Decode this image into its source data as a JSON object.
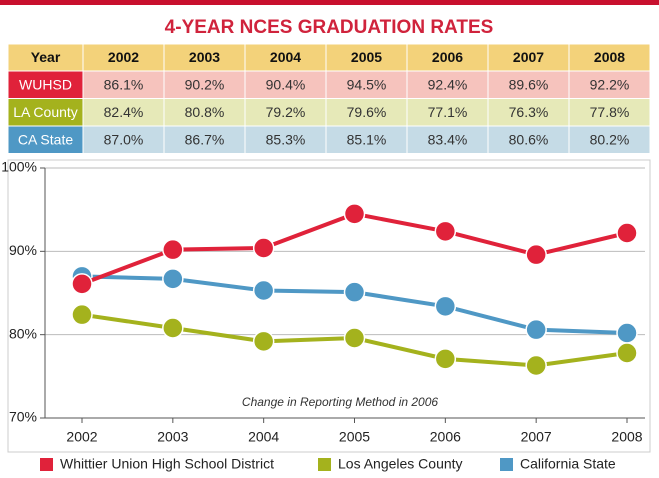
{
  "table": {
    "header": [
      "Year",
      "2002",
      "2003",
      "2004",
      "2005",
      "2006",
      "2007",
      "2008"
    ],
    "rows": [
      {
        "label": "WUHSD",
        "cells": [
          "86.1%",
          "90.2%",
          "90.4%",
          "94.5%",
          "92.4%",
          "89.6%",
          "92.2%"
        ]
      },
      {
        "label": "LA County",
        "cells": [
          "82.4%",
          "80.8%",
          "79.2%",
          "79.6%",
          "77.1%",
          "76.3%",
          "77.8%"
        ]
      },
      {
        "label": "CA State",
        "cells": [
          "87.0%",
          "86.7%",
          "85.3%",
          "85.1%",
          "83.4%",
          "80.6%",
          "80.2%"
        ]
      }
    ]
  },
  "chart_data": {
    "type": "line",
    "title": "4-YEAR NCES GRADUATION RATES",
    "annotation": "Change in Reporting Method in 2006",
    "categories": [
      "2002",
      "2003",
      "2004",
      "2005",
      "2006",
      "2007",
      "2008"
    ],
    "series": [
      {
        "name": "Whittier Union High School District",
        "color": "#e0223a",
        "values": [
          86.1,
          90.2,
          90.4,
          94.5,
          92.4,
          89.6,
          92.2
        ]
      },
      {
        "name": "Los Angeles County",
        "color": "#a4b21d",
        "values": [
          82.4,
          80.8,
          79.2,
          79.6,
          77.1,
          76.3,
          77.8
        ]
      },
      {
        "name": "California State",
        "color": "#4f98c5",
        "values": [
          87.0,
          86.7,
          85.3,
          85.1,
          83.4,
          80.6,
          80.2
        ]
      }
    ],
    "ylim": [
      70,
      100
    ],
    "yticks": [
      {
        "value": 70,
        "label": "70%"
      },
      {
        "value": 80,
        "label": "80%"
      },
      {
        "value": 90,
        "label": "90%"
      },
      {
        "value": 100,
        "label": "100%"
      }
    ],
    "grid": true
  }
}
